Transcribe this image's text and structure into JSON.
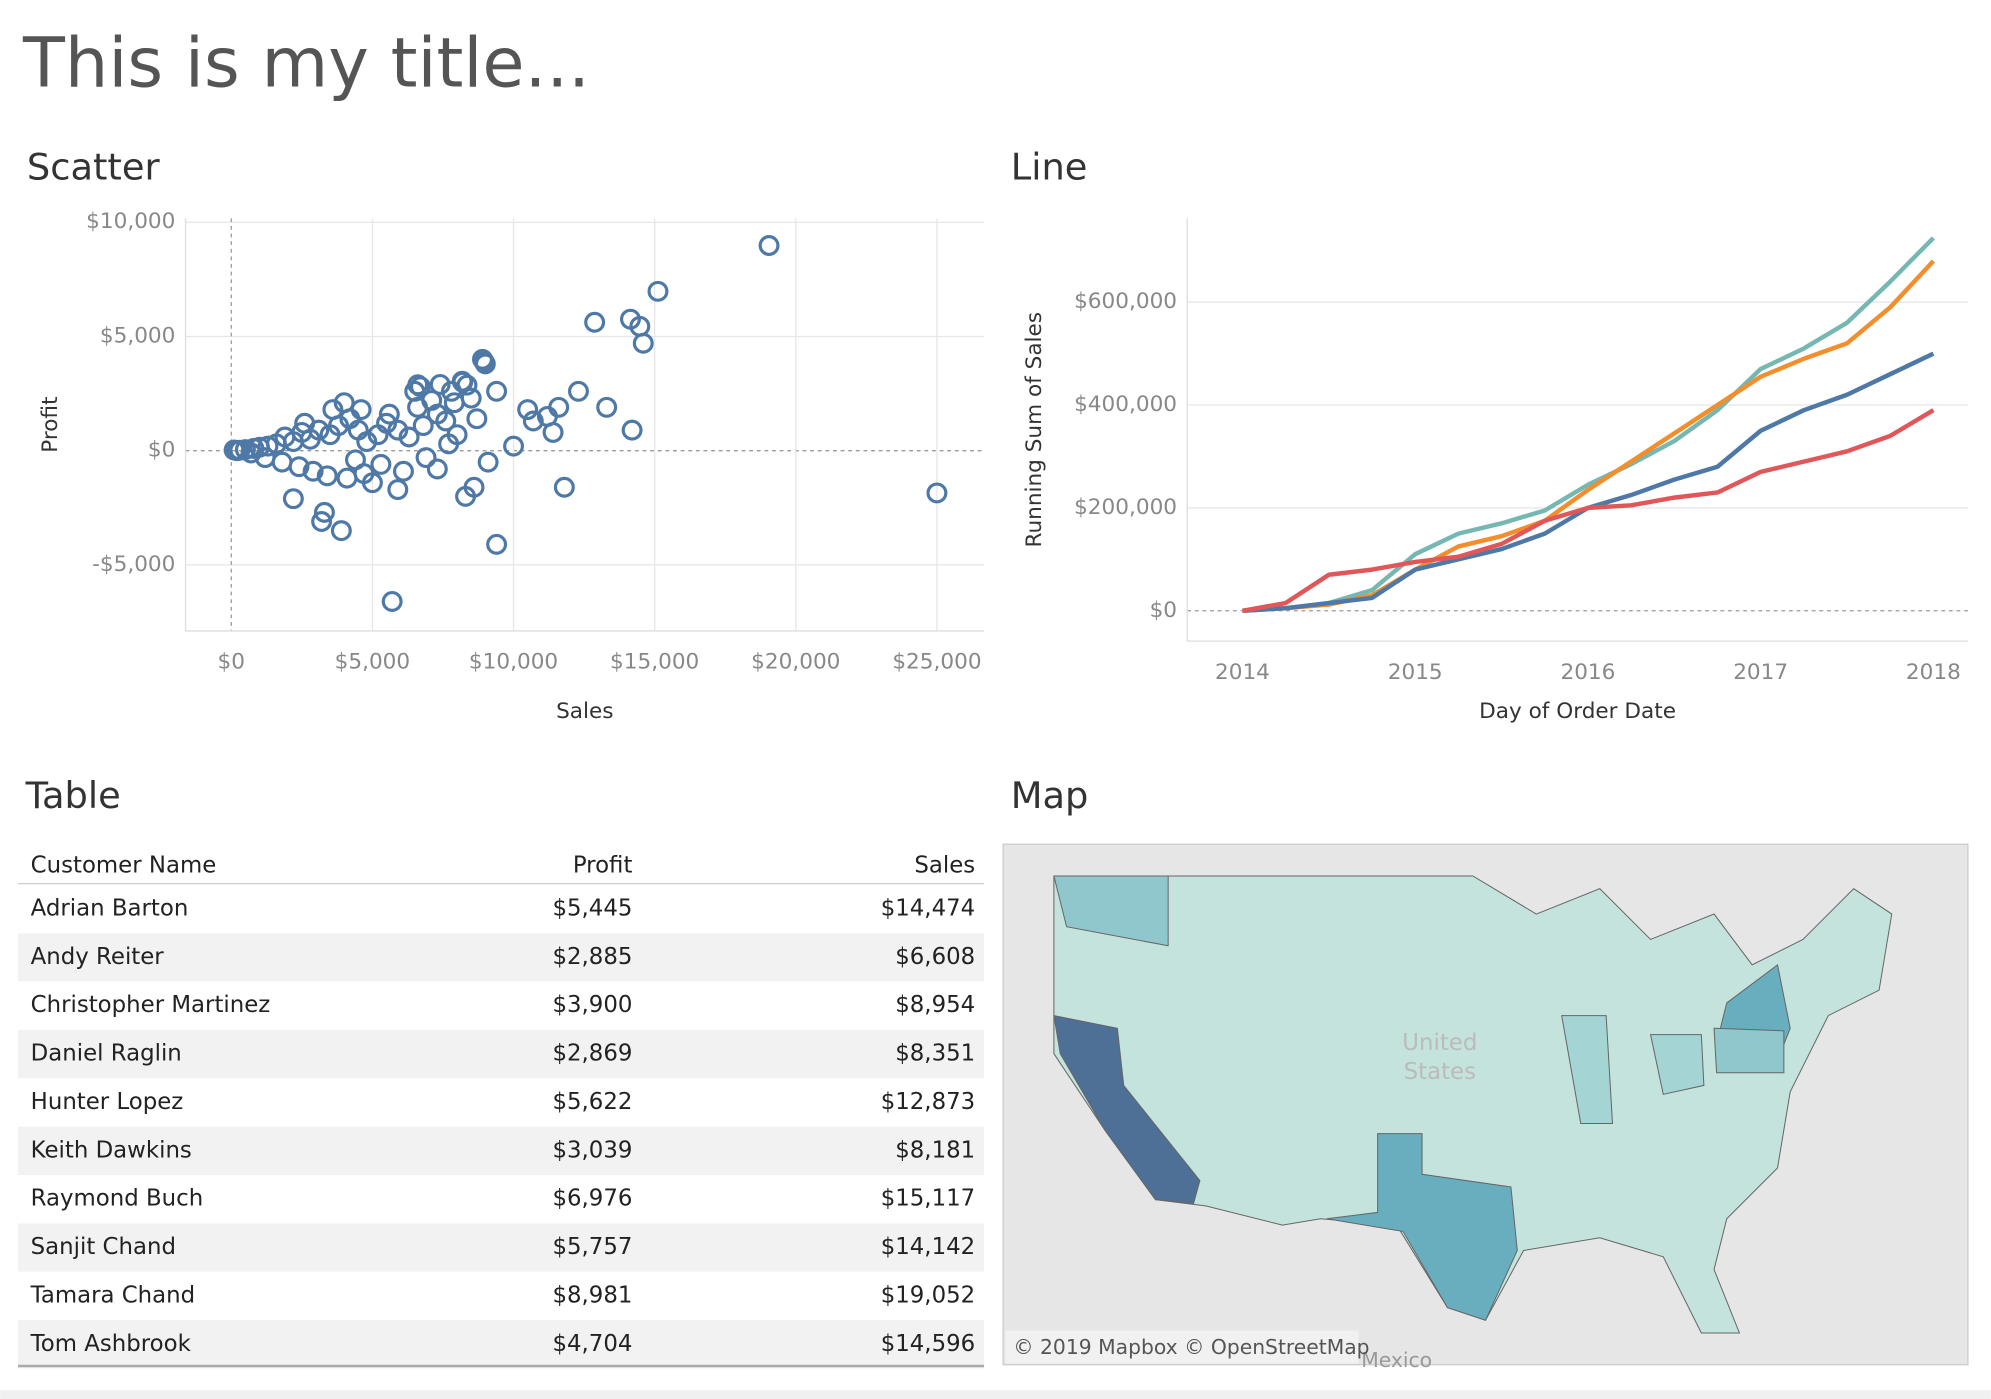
{
  "title": "This is my title...",
  "chart_data": [
    {
      "type": "scatter",
      "title": "Scatter",
      "x_label": "Sales",
      "y_label": "Profit",
      "color": "#4e79a7",
      "grid": true,
      "xlim": [
        -1620,
        26670
      ],
      "ylim": [
        -7890,
        10170
      ],
      "xticks": [
        {
          "value": 0,
          "label": "$0"
        },
        {
          "value": 5000,
          "label": "$5,000"
        },
        {
          "value": 10000,
          "label": "$10,000"
        },
        {
          "value": 15000,
          "label": "$15,000"
        },
        {
          "value": 20000,
          "label": "$20,000"
        },
        {
          "value": 25000,
          "label": "$25,000"
        }
      ],
      "yticks": [
        {
          "value": -5000,
          "label": "-$5,000"
        },
        {
          "value": 0,
          "label": "$0"
        },
        {
          "value": 5000,
          "label": "$5,000"
        },
        {
          "value": 10000,
          "label": "$10,000"
        }
      ],
      "x": [
        14474,
        6608,
        8954,
        8351,
        12873,
        8181,
        15117,
        14142,
        19052,
        14596,
        25000,
        5700,
        9400,
        14200,
        11800,
        3200,
        3300,
        3900,
        2200,
        8300,
        8600,
        9100,
        10000,
        13300,
        12300,
        11600,
        11200,
        11400,
        10700,
        10500,
        9400,
        9000,
        8900,
        8200,
        7800,
        7400,
        6700,
        6500,
        7100,
        7900,
        8500,
        8700,
        7600,
        6800,
        6300,
        5900,
        5500,
        5200,
        4800,
        4500,
        4200,
        3800,
        3500,
        3100,
        2800,
        2500,
        2200,
        1900,
        1600,
        1300,
        1000,
        800,
        500,
        300,
        200,
        100,
        700,
        1200,
        1800,
        2400,
        2900,
        3400,
        4100,
        4700,
        5300,
        6100,
        6900,
        7300,
        7700,
        8000,
        4000,
        4600,
        5600,
        3600,
        2600,
        5000,
        5900,
        4400,
        6600,
        7300
      ],
      "y": [
        5445,
        2885,
        3900,
        2869,
        5622,
        3039,
        6976,
        5757,
        8981,
        4704,
        -1850,
        -6600,
        -4100,
        900,
        -1600,
        -3100,
        -2700,
        -3500,
        -2100,
        -2000,
        -1600,
        -500,
        200,
        1900,
        2600,
        1900,
        1500,
        800,
        1300,
        1800,
        2600,
        3800,
        4000,
        3000,
        2600,
        2900,
        2800,
        2600,
        2200,
        2100,
        2300,
        1400,
        1300,
        1100,
        600,
        900,
        1200,
        700,
        400,
        900,
        1400,
        1100,
        700,
        900,
        500,
        800,
        400,
        600,
        300,
        200,
        150,
        100,
        50,
        20,
        0,
        30,
        -100,
        -300,
        -500,
        -700,
        -900,
        -1100,
        -1200,
        -1000,
        -600,
        -900,
        -300,
        -800,
        300,
        700,
        2100,
        1800,
        1600,
        1800,
        1200,
        -1400,
        -1700,
        -400,
        1900,
        1600
      ]
    },
    {
      "type": "line",
      "title": "Line",
      "x_label": "Day of Order Date",
      "y_label": "Running Sum of Sales",
      "grid": true,
      "xlim": [
        2013.68,
        2018.2
      ],
      "ylim": [
        -59000,
        763000
      ],
      "xticks": [
        2014,
        2015,
        2016,
        2017,
        2018
      ],
      "yticks": [
        {
          "value": 0,
          "label": "$0"
        },
        {
          "value": 200000,
          "label": "$200,000"
        },
        {
          "value": 400000,
          "label": "$400,000"
        },
        {
          "value": 600000,
          "label": "$600,000"
        }
      ],
      "x": [
        2014,
        2014.25,
        2014.5,
        2014.75,
        2015,
        2015.25,
        2015.5,
        2015.75,
        2016,
        2016.25,
        2016.5,
        2016.75,
        2017,
        2017.25,
        2017.5,
        2017.75,
        2018
      ],
      "series": [
        {
          "color": "#76b7b2",
          "values": [
            0,
            5000,
            15000,
            40000,
            110000,
            150000,
            170000,
            195000,
            245000,
            285000,
            330000,
            390000,
            470000,
            510000,
            560000,
            640000,
            725000
          ]
        },
        {
          "color": "#f28e2b",
          "values": [
            0,
            5000,
            12000,
            30000,
            80000,
            125000,
            145000,
            175000,
            235000,
            290000,
            345000,
            400000,
            455000,
            490000,
            520000,
            590000,
            680000
          ]
        },
        {
          "color": "#4e79a7",
          "values": [
            0,
            5000,
            15000,
            25000,
            80000,
            100000,
            120000,
            150000,
            200000,
            225000,
            255000,
            280000,
            350000,
            390000,
            420000,
            460000,
            500000
          ]
        },
        {
          "color": "#e15759",
          "values": [
            0,
            15000,
            70000,
            80000,
            95000,
            105000,
            130000,
            175000,
            200000,
            205000,
            220000,
            230000,
            270000,
            290000,
            310000,
            340000,
            390000
          ]
        }
      ]
    }
  ],
  "table": {
    "title": "Table",
    "columns": [
      "Customer Name",
      "Profit",
      "Sales"
    ],
    "rows": [
      [
        "Adrian Barton",
        "$5,445",
        "$14,474"
      ],
      [
        "Andy Reiter",
        "$2,885",
        "$6,608"
      ],
      [
        "Christopher Martinez",
        "$3,900",
        "$8,954"
      ],
      [
        "Daniel Raglin",
        "$2,869",
        "$8,351"
      ],
      [
        "Hunter Lopez",
        "$5,622",
        "$12,873"
      ],
      [
        "Keith Dawkins",
        "$3,039",
        "$8,181"
      ],
      [
        "Raymond Buch",
        "$6,976",
        "$15,117"
      ],
      [
        "Sanjit Chand",
        "$5,757",
        "$14,142"
      ],
      [
        "Tamara Chand",
        "$8,981",
        "$19,052"
      ],
      [
        "Tom Ashbrook",
        "$4,704",
        "$14,596"
      ]
    ]
  },
  "map": {
    "title": "Map",
    "labels": [
      "United",
      "States",
      "Mexico"
    ],
    "attribution": "© 2019 Mapbox © OpenStreetMap"
  }
}
